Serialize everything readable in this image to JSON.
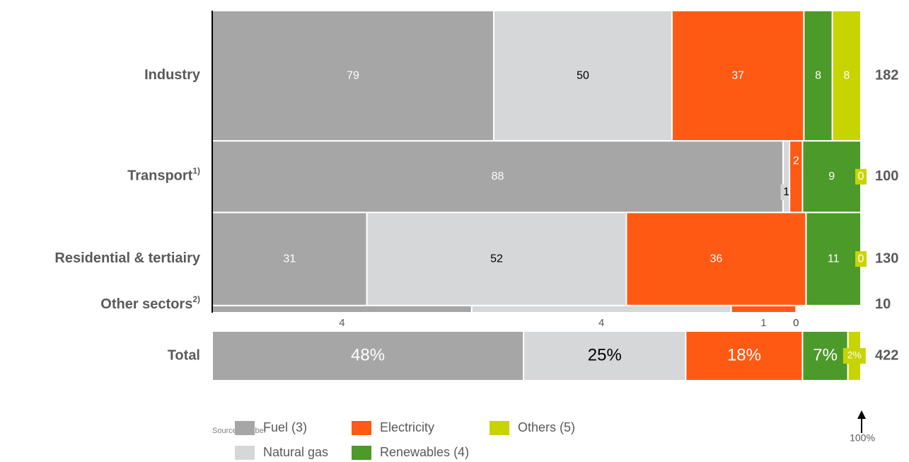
{
  "chart_data": {
    "type": "mekko",
    "categories": [
      {
        "name": "Industry"
      },
      {
        "name": "Transport",
        "note": "1)"
      },
      {
        "name": "Residential & tertiairy"
      },
      {
        "name": "Other sectors",
        "note": "2)"
      }
    ],
    "series": [
      {
        "name": "Fuel (3)",
        "color": "#a6a6a6",
        "label_color": "#ffffff",
        "values": [
          79,
          88,
          31,
          4
        ]
      },
      {
        "name": "Natural gas",
        "color": "#d6d7d9",
        "label_color": "#000000",
        "values": [
          50,
          1,
          52,
          4
        ]
      },
      {
        "name": "Electricity",
        "color": "#ff5a14",
        "label_color": "#ffffff",
        "values": [
          37,
          2,
          36,
          1
        ]
      },
      {
        "name": "Renewables (4)",
        "color": "#4c9a2a",
        "label_color": "#ffffff",
        "values": [
          8,
          9,
          11,
          0
        ]
      },
      {
        "name": "Others (5)",
        "color": "#c8d400",
        "label_color": "#ffffff",
        "values": [
          8,
          0,
          0,
          0
        ]
      }
    ],
    "totals": [
      182,
      100,
      130,
      10
    ],
    "total_row": {
      "label": "Total",
      "values": [
        48,
        25,
        18,
        7,
        2
      ],
      "value_labels": [
        "48%",
        "25%",
        "18%",
        "7%",
        "2%"
      ],
      "total": 422
    },
    "source": "Source: Statbel",
    "annotation": "100%"
  }
}
